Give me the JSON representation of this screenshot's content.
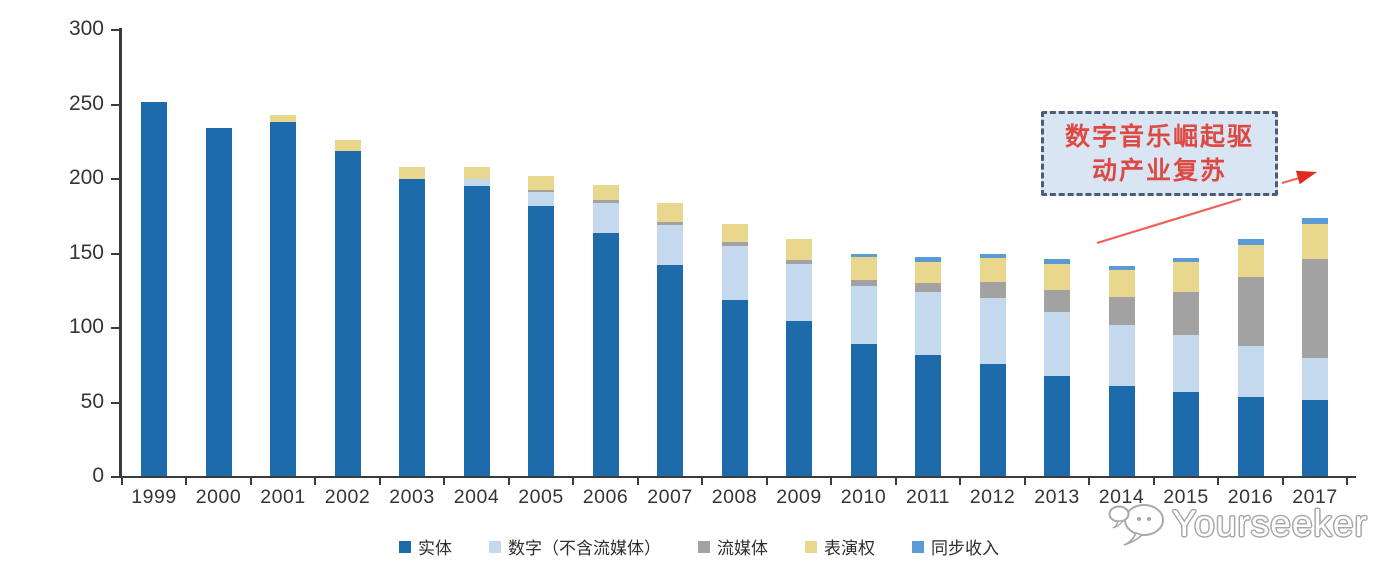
{
  "chart_data": {
    "type": "bar",
    "stacked": true,
    "grid": false,
    "legend_position": "bottom",
    "unit_note": "",
    "categories": [
      "1999",
      "2000",
      "2001",
      "2002",
      "2003",
      "2004",
      "2005",
      "2006",
      "2007",
      "2008",
      "2009",
      "2010",
      "2011",
      "2012",
      "2013",
      "2014",
      "2015",
      "2016",
      "2017"
    ],
    "series": [
      {
        "name": "实体",
        "color": "#1e6bab",
        "values": [
          252,
          234,
          238,
          219,
          200,
          195,
          182,
          164,
          142,
          119,
          105,
          89,
          82,
          76,
          68,
          61,
          57,
          54,
          52
        ]
      },
      {
        "name": "数字（不含流媒体）",
        "color": "#c4d9ee",
        "values": [
          0,
          0,
          0,
          0,
          0,
          5,
          9,
          20,
          27,
          36,
          38,
          39.5,
          42,
          44,
          43,
          41,
          38,
          34,
          28
        ]
      },
      {
        "name": "流媒体",
        "color": "#a2a2a2",
        "values": [
          0,
          0,
          0,
          0,
          0,
          0,
          1.5,
          2,
          2,
          2.5,
          2.5,
          4,
          6.5,
          11,
          14.5,
          19,
          29,
          46,
          66
        ]
      },
      {
        "name": "表演权",
        "color": "#ead78e",
        "values": [
          0,
          0,
          5,
          7,
          8,
          8,
          9.5,
          10,
          13,
          12.5,
          14.5,
          15,
          14,
          16,
          17.5,
          18,
          20,
          22,
          24
        ]
      },
      {
        "name": "同步收入",
        "color": "#5b9bd5",
        "values": [
          0,
          0,
          0,
          0,
          0,
          0,
          0,
          0,
          0,
          0,
          0,
          2.5,
          3,
          2.5,
          3,
          2.5,
          3,
          4,
          3.5
        ]
      }
    ],
    "ylim": [
      0,
      300
    ],
    "yticks": [
      0,
      50,
      100,
      150,
      200,
      250,
      300
    ],
    "xlabel": "",
    "ylabel": ""
  },
  "annotation": {
    "line1": "数字音乐崛起驱",
    "line2": "动产业复苏",
    "text_color": "#dd4a44",
    "box_fill": "#d9e5f2",
    "box_border": "#4c5b76",
    "arrow_color": "#f0605a"
  },
  "watermark": {
    "text": "Yourseeker",
    "logo": "speech-bubbles-icon"
  },
  "axis_color": "#3b3b3b"
}
